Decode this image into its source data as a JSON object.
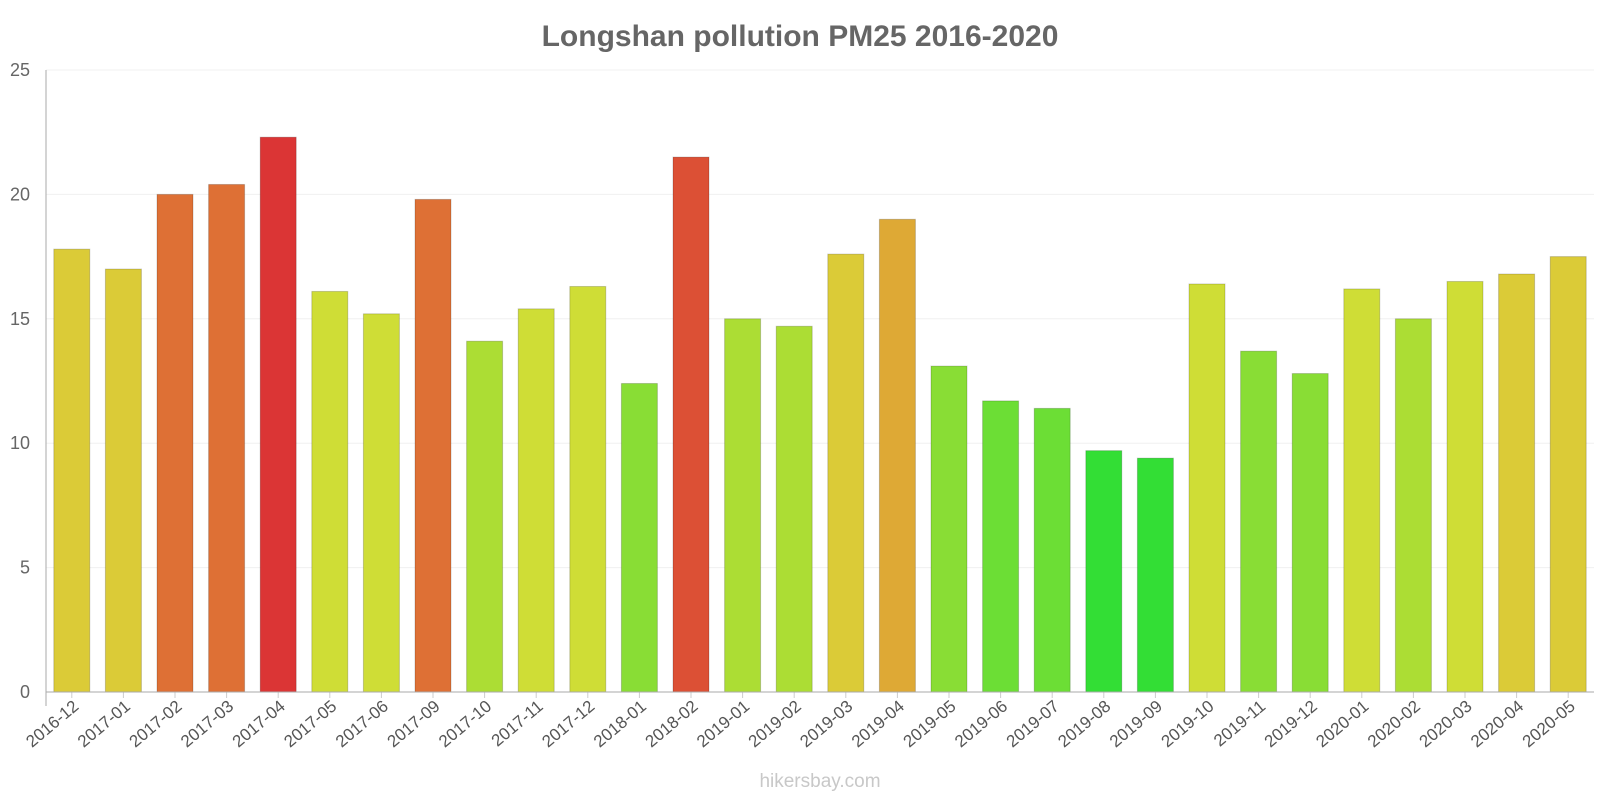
{
  "chart_data": {
    "type": "bar",
    "title": "Longshan pollution PM25 2016-2020",
    "xlabel": "",
    "ylabel": "",
    "ylim": [
      0,
      25
    ],
    "yticks": [
      0,
      5,
      10,
      15,
      20,
      25
    ],
    "grid": true,
    "legend": "none",
    "categories": [
      "2016-12",
      "2017-01",
      "2017-02",
      "2017-03",
      "2017-04",
      "2017-05",
      "2017-06",
      "2017-09",
      "2017-10",
      "2017-11",
      "2017-12",
      "2018-01",
      "2018-02",
      "2019-01",
      "2019-02",
      "2019-03",
      "2019-04",
      "2019-05",
      "2019-06",
      "2019-07",
      "2019-08",
      "2019-09",
      "2019-10",
      "2019-11",
      "2019-12",
      "2020-01",
      "2020-02",
      "2020-03",
      "2020-04",
      "2020-05"
    ],
    "values": [
      17.8,
      17.0,
      20.0,
      20.4,
      22.3,
      16.1,
      15.2,
      19.8,
      14.1,
      15.4,
      16.3,
      12.4,
      21.5,
      15.0,
      14.7,
      17.6,
      19.0,
      13.1,
      11.7,
      11.4,
      9.7,
      9.4,
      16.4,
      13.7,
      12.8,
      16.2,
      15.0,
      16.5,
      16.8,
      17.5
    ],
    "bar_colors": [
      "#dbcb37",
      "#dbcb37",
      "#de7035",
      "#de7035",
      "#db3535",
      "#cfdd36",
      "#cfdd36",
      "#de7035",
      "#acdd34",
      "#cfdd36",
      "#cfdd36",
      "#89dd35",
      "#dc5035",
      "#acdd34",
      "#acdd34",
      "#dbcb37",
      "#dea935",
      "#89dd35",
      "#6cde35",
      "#6cde35",
      "#33de35",
      "#33de35",
      "#cfdd36",
      "#89dd35",
      "#89dd35",
      "#cfdd36",
      "#acdd34",
      "#cfdd36",
      "#dbcb37",
      "#dbcb37"
    ]
  },
  "credit": "hikersbay.com"
}
